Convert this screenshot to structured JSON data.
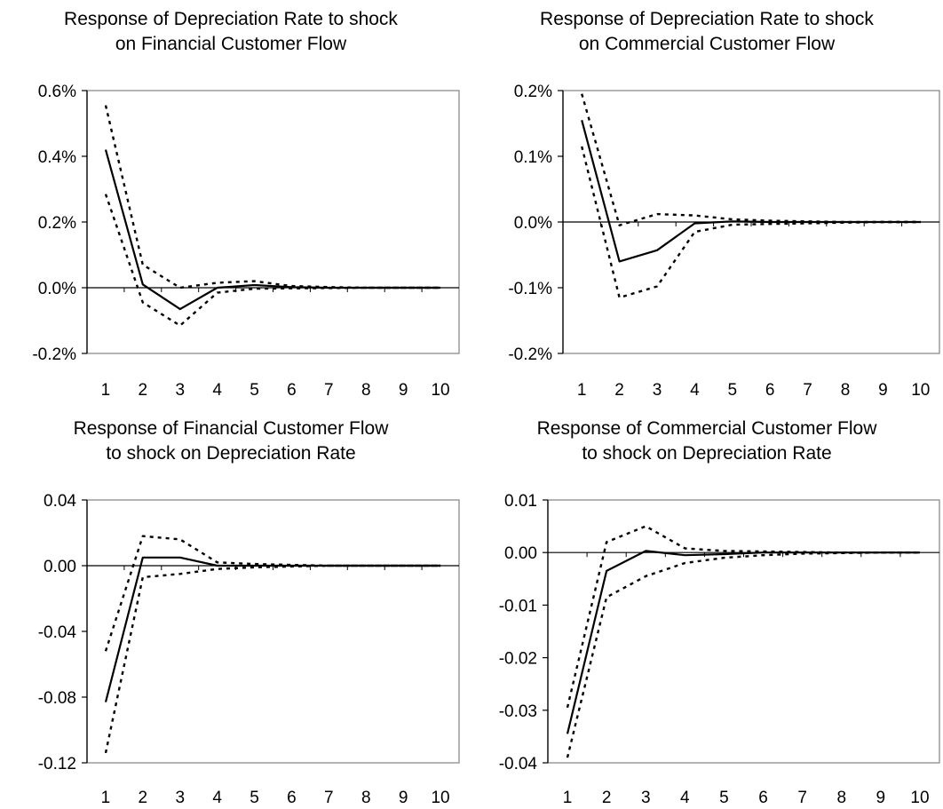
{
  "chart_data": [
    {
      "type": "line",
      "title_line1": "Response of Depreciation Rate to shock",
      "title_line2": "on Financial Customer Flow",
      "x": [
        1,
        2,
        3,
        4,
        5,
        6,
        7,
        8,
        9,
        10
      ],
      "ylim": [
        -0.2,
        0.6
      ],
      "yticks": [
        -0.2,
        0.0,
        0.2,
        0.4,
        0.6
      ],
      "ytick_labels": [
        "-0.2%",
        "0.0%",
        "0.2%",
        "0.4%",
        "0.6%"
      ],
      "grid": false,
      "series": [
        {
          "role": "response",
          "style": "solid",
          "values": [
            0.42,
            0.01,
            -0.065,
            0.0,
            0.008,
            0.002,
            0.0,
            0.0,
            0.0,
            0.0
          ]
        },
        {
          "role": "upper-band",
          "style": "dotted",
          "values": [
            0.555,
            0.07,
            0.0,
            0.015,
            0.02,
            0.005,
            0.002,
            0.0,
            0.0,
            0.0
          ]
        },
        {
          "role": "lower-band",
          "style": "dotted",
          "values": [
            0.285,
            -0.045,
            -0.115,
            -0.015,
            -0.003,
            -0.002,
            -0.001,
            0.0,
            0.0,
            0.0
          ]
        }
      ]
    },
    {
      "type": "line",
      "title_line1": "Response of Depreciation Rate to shock",
      "title_line2": "on Commercial Customer Flow",
      "x": [
        1,
        2,
        3,
        4,
        5,
        6,
        7,
        8,
        9,
        10
      ],
      "ylim": [
        -0.2,
        0.2
      ],
      "yticks": [
        -0.2,
        -0.1,
        0.0,
        0.1,
        0.2
      ],
      "ytick_labels": [
        "-0.2%",
        "-0.1%",
        "0.0%",
        "0.1%",
        "0.2%"
      ],
      "grid": false,
      "series": [
        {
          "role": "response",
          "style": "solid",
          "values": [
            0.155,
            -0.06,
            -0.043,
            -0.002,
            0.001,
            0.0,
            0.0,
            0.0,
            0.0,
            0.0
          ]
        },
        {
          "role": "upper-band",
          "style": "dotted",
          "values": [
            0.195,
            -0.005,
            0.012,
            0.01,
            0.004,
            0.002,
            0.001,
            0.0,
            0.0,
            0.0
          ]
        },
        {
          "role": "lower-band",
          "style": "dotted",
          "values": [
            0.115,
            -0.115,
            -0.098,
            -0.015,
            -0.004,
            -0.003,
            -0.002,
            -0.001,
            0.0,
            0.0
          ]
        }
      ]
    },
    {
      "type": "line",
      "title_line1": "Response of Financial Customer Flow",
      "title_line2": "to shock on Depreciation Rate",
      "x": [
        1,
        2,
        3,
        4,
        5,
        6,
        7,
        8,
        9,
        10
      ],
      "ylim": [
        -0.12,
        0.04
      ],
      "yticks": [
        -0.12,
        -0.08,
        -0.04,
        0.0,
        0.04
      ],
      "ytick_labels": [
        "-0.12",
        "-0.08",
        "-0.04",
        "0.00",
        "0.04"
      ],
      "grid": false,
      "series": [
        {
          "role": "response",
          "style": "solid",
          "values": [
            -0.083,
            0.005,
            0.005,
            0.0,
            0.0,
            0.0,
            0.0,
            0.0,
            0.0,
            0.0
          ]
        },
        {
          "role": "upper-band",
          "style": "dotted",
          "values": [
            -0.052,
            0.018,
            0.016,
            0.002,
            0.001,
            0.0005,
            0.0,
            0.0,
            0.0,
            0.0
          ]
        },
        {
          "role": "lower-band",
          "style": "dotted",
          "values": [
            -0.114,
            -0.007,
            -0.005,
            -0.002,
            -0.001,
            -0.0005,
            0.0,
            0.0,
            0.0,
            0.0
          ]
        }
      ]
    },
    {
      "type": "line",
      "title_line1": "Response of Commercial Customer Flow",
      "title_line2": "to shock on Depreciation Rate",
      "x": [
        1,
        2,
        3,
        4,
        5,
        6,
        7,
        8,
        9,
        10
      ],
      "ylim": [
        -0.04,
        0.01
      ],
      "yticks": [
        -0.04,
        -0.03,
        -0.02,
        -0.01,
        0.0,
        0.01
      ],
      "ytick_labels": [
        "-0.04",
        "-0.03",
        "-0.02",
        "-0.01",
        "0.00",
        "0.01"
      ],
      "grid": false,
      "series": [
        {
          "role": "response",
          "style": "solid",
          "values": [
            -0.0345,
            -0.0035,
            0.0003,
            -0.0005,
            -0.0003,
            0.0,
            0.0,
            0.0,
            0.0,
            0.0
          ]
        },
        {
          "role": "upper-band",
          "style": "dotted",
          "values": [
            -0.0295,
            0.002,
            0.005,
            0.0008,
            0.0003,
            0.0002,
            0.0001,
            0.0,
            0.0,
            0.0
          ]
        },
        {
          "role": "lower-band",
          "style": "dotted",
          "values": [
            -0.039,
            -0.0085,
            -0.0045,
            -0.002,
            -0.001,
            -0.0005,
            -0.0002,
            -0.0001,
            0.0,
            0.0
          ]
        }
      ]
    }
  ]
}
